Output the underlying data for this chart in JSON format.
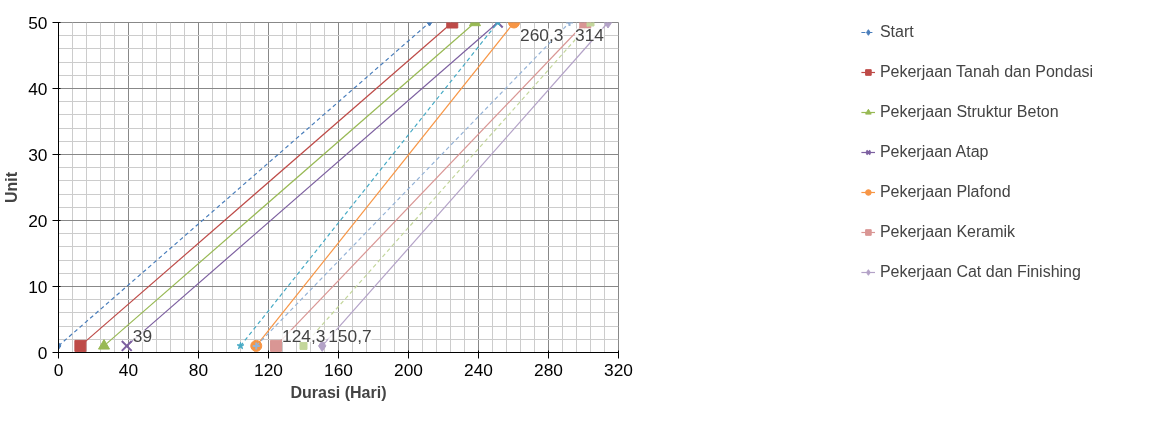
{
  "chart_data": {
    "type": "line",
    "xlabel": "Durasi (Hari)",
    "ylabel": "Unit",
    "xlim": [
      0,
      320
    ],
    "ylim": [
      0,
      50
    ],
    "xticks": [
      0,
      40,
      80,
      120,
      160,
      200,
      240,
      280,
      320
    ],
    "yticks": [
      0,
      10,
      20,
      30,
      40,
      50
    ],
    "grid": true,
    "legend": "right",
    "series": [
      {
        "name": "Start",
        "color": "#4a7ebb",
        "x": [
          0,
          212
        ],
        "values": [
          1,
          50
        ],
        "marker": "diamond",
        "line_style": "dashed"
      },
      {
        "name": "Pekerjaan Tanah dan Pondasi",
        "color": "#be4b48",
        "x": [
          12.5,
          225
        ],
        "values": [
          1,
          50
        ],
        "marker": "square",
        "line_style": "solid"
      },
      {
        "name": "Pekerjaan Struktur Beton",
        "color": "#98b954",
        "x": [
          26,
          238
        ],
        "values": [
          1,
          50
        ],
        "marker": "triangle",
        "line_style": "solid"
      },
      {
        "name": "Pekerjaan Atap",
        "color": "#7d60a0",
        "x": [
          39,
          251
        ],
        "values": [
          1,
          50
        ],
        "marker": "x",
        "line_style": "solid"
      },
      {
        "color": "#46aac5",
        "x": [
          104,
          251
        ],
        "values": [
          1,
          50
        ],
        "marker": "star",
        "line_style": "dashed"
      },
      {
        "name": "Pekerjaan Plafond",
        "color": "#f79646",
        "x": [
          113,
          260.3
        ],
        "values": [
          1,
          50
        ],
        "marker": "circle",
        "line_style": "solid"
      },
      {
        "color": "#95b3d7",
        "x": [
          113,
          292
        ],
        "values": [
          1,
          50
        ],
        "marker": "cross",
        "line_style": "dashed"
      },
      {
        "name": "Pekerjaan Keramik",
        "color": "#d99694",
        "x": [
          124.3,
          301
        ],
        "values": [
          1,
          50
        ],
        "marker": "square",
        "line_style": "solid"
      },
      {
        "color": "#c3d69b",
        "x": [
          140,
          304
        ],
        "values": [
          1,
          50
        ],
        "marker": "square",
        "line_style": "dashed"
      },
      {
        "name": "Pekerjaan Cat dan Finishing",
        "color": "#b3a2c7",
        "x": [
          150.7,
          314
        ],
        "values": [
          1,
          50
        ],
        "marker": "diamond",
        "line_style": "solid"
      }
    ],
    "annotations": [
      {
        "text": "39",
        "x": 39,
        "y": 1
      },
      {
        "text": "124,3",
        "x": 124.3,
        "y": 1
      },
      {
        "text": "150,7",
        "x": 150.7,
        "y": 1
      },
      {
        "text": "260,3",
        "x": 260.3,
        "y": 50
      },
      {
        "text": "314",
        "x": 314,
        "y": 50
      }
    ]
  }
}
